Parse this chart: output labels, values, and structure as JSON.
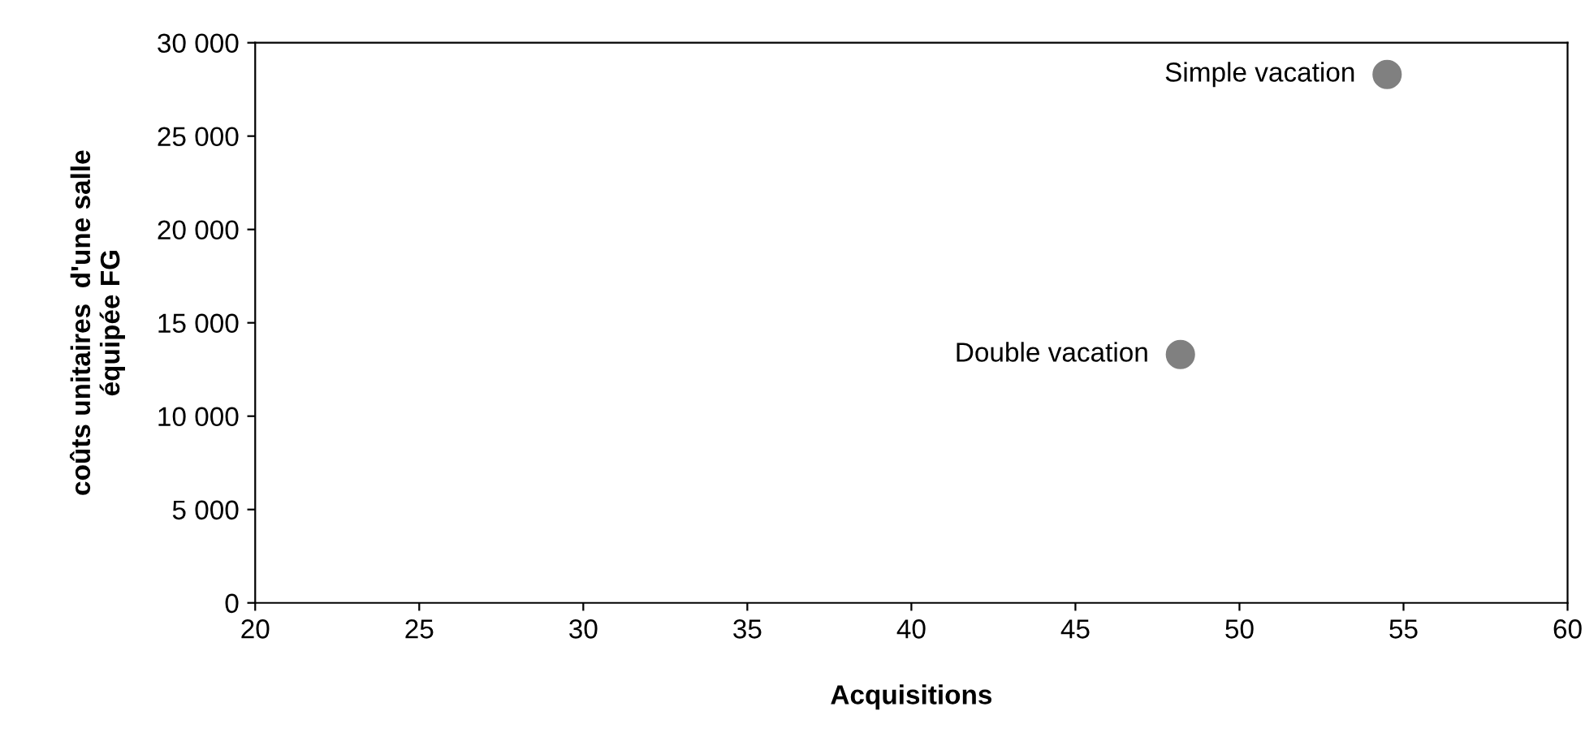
{
  "chart_data": {
    "type": "scatter",
    "xlabel": "Acquisitions",
    "ylabel": "coûts unitaires  d'une salle\néquipée FG",
    "series": [
      {
        "color": "#808080",
        "x": [
          54.5,
          48.2
        ],
        "values": [
          28300,
          13300
        ]
      }
    ],
    "annotations": [
      {
        "text": "Simple vacation",
        "x": 54.5,
        "y": 28300
      },
      {
        "text": "Double vacation",
        "x": 48.2,
        "y": 13300
      }
    ],
    "marker": "circle",
    "grid": false,
    "xlim": [
      20,
      60
    ],
    "xticks": [
      20,
      25,
      30,
      35,
      40,
      45,
      50,
      55,
      60
    ],
    "ylim": [
      0,
      30000
    ],
    "yticks": [
      {
        "value": 0,
        "label": "0"
      },
      {
        "value": 5000,
        "label": "5 000"
      },
      {
        "value": 10000,
        "label": "10 000"
      },
      {
        "value": 15000,
        "label": "15 000"
      },
      {
        "value": 20000,
        "label": "20 000"
      },
      {
        "value": 25000,
        "label": "25 000"
      },
      {
        "value": 30000,
        "label": "30 000"
      }
    ]
  }
}
